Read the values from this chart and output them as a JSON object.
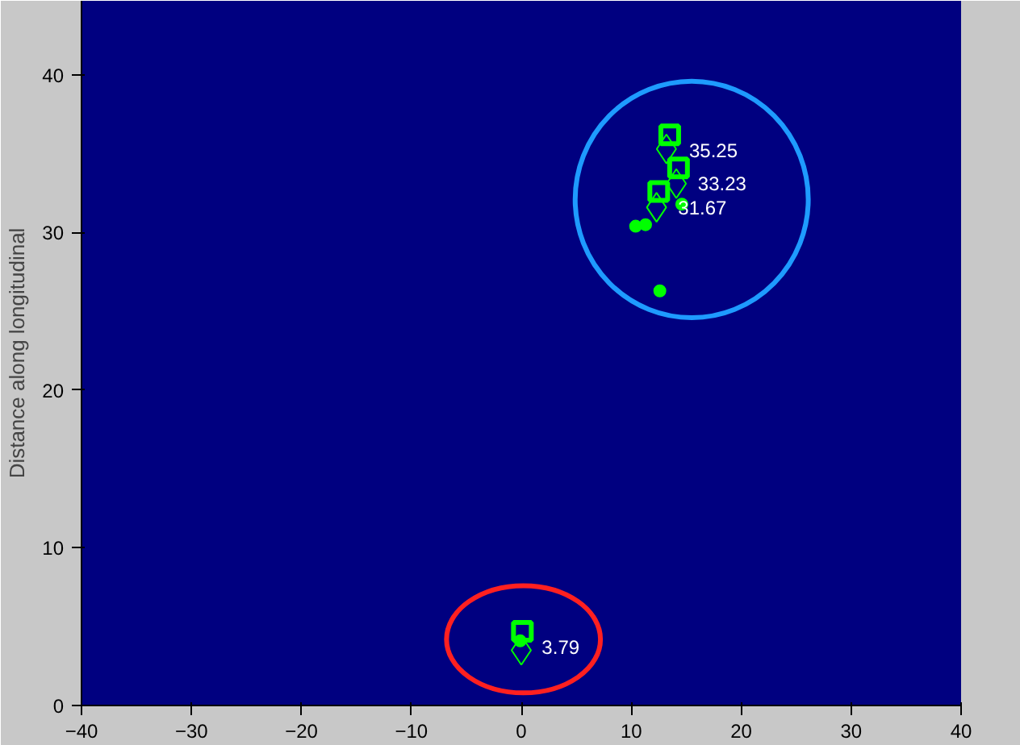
{
  "chart_data": {
    "type": "scatter",
    "ylabel": "Distance along longitudinal",
    "xlim": [
      -40,
      40
    ],
    "ylim": [
      0,
      44.7
    ],
    "xticks": [
      -40,
      -30,
      -20,
      -10,
      0,
      10,
      20,
      30,
      40
    ],
    "yticks": [
      0,
      10,
      20,
      30,
      40
    ],
    "x": [
      13.5,
      14.3,
      12.5,
      0.1
    ],
    "annotations": [
      {
        "text": "35.25",
        "x": 13.5,
        "y": 36.2
      },
      {
        "text": "33.23",
        "x": 14.3,
        "y": 34.1
      },
      {
        "text": "31.67",
        "x": 12.5,
        "y": 32.6
      },
      {
        "text": "3.79",
        "x": 0.1,
        "y": 4.7
      }
    ],
    "series": [
      {
        "color": "#00ff00",
        "marker": "diamond",
        "x": [
          13.2,
          14.1,
          12.3,
          0.0
        ],
        "values": [
          35.3,
          33.1,
          31.6,
          3.5
        ]
      },
      {
        "color": "#00ff00",
        "marker": "circle",
        "x": [
          10.4,
          11.3,
          14.6,
          12.6,
          -0.1
        ],
        "values": [
          30.4,
          30.5,
          31.8,
          26.3,
          4.1
        ]
      },
      {
        "color": "#00ff00",
        "marker": "square",
        "values": [
          36.2,
          34.1,
          32.6,
          4.7
        ]
      }
    ]
  }
}
